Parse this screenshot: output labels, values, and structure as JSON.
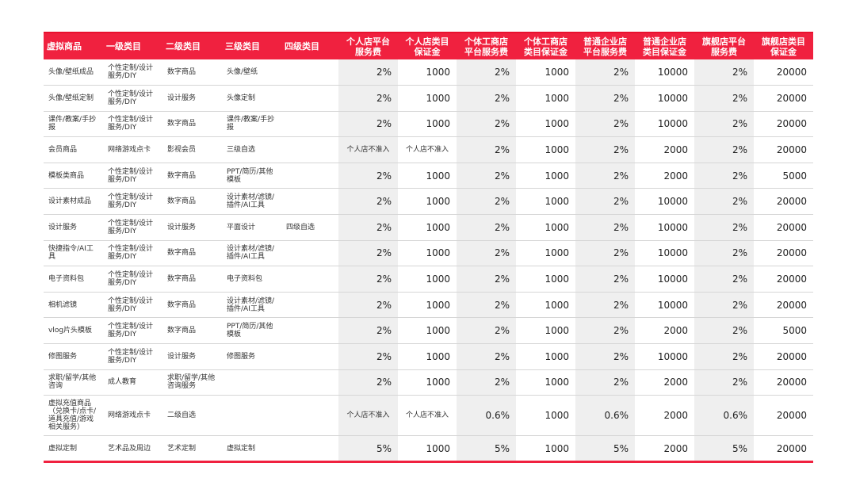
{
  "headers": [
    "虚拟商品",
    "一级类目",
    "二级类目",
    "三级类目",
    "四级类目",
    "个人店平台\n服务费",
    "个人店类目\n保证金",
    "个体工商店\n平台服务费",
    "个体工商店\n类目保证金",
    "普通企业店\n平台服务费",
    "普通企业店\n类目保证金",
    "旗舰店平台\n服务费",
    "旗舰店类目\n保证金"
  ],
  "rows": [
    [
      "头像/壁纸成品",
      "个性定制/设计服务/DIY",
      "数字商品",
      "头像/壁纸",
      "",
      "2%",
      "1000",
      "2%",
      "1000",
      "2%",
      "10000",
      "2%",
      "20000"
    ],
    [
      "头像/壁纸定制",
      "个性定制/设计服务/DIY",
      "设计服务",
      "头像定制",
      "",
      "2%",
      "1000",
      "2%",
      "1000",
      "2%",
      "10000",
      "2%",
      "20000"
    ],
    [
      "课件/教案/手抄报",
      "个性定制/设计服务/DIY",
      "数字商品",
      "课件/教案/手抄报",
      "",
      "2%",
      "1000",
      "2%",
      "1000",
      "2%",
      "10000",
      "2%",
      "20000"
    ],
    [
      "会员商品",
      "网络游戏点卡",
      "影视会员",
      "三级自选",
      "",
      "个人店不准入",
      "个人店不准入",
      "2%",
      "1000",
      "2%",
      "2000",
      "2%",
      "20000"
    ],
    [
      "模板类商品",
      "个性定制/设计服务/DIY",
      "数字商品",
      "PPT/简历/其他模板",
      "",
      "2%",
      "1000",
      "2%",
      "1000",
      "2%",
      "2000",
      "2%",
      "5000"
    ],
    [
      "设计素材成品",
      "个性定制/设计服务/DIY",
      "数字商品",
      "设计素材/滤镜/插件/AI工具",
      "",
      "2%",
      "1000",
      "2%",
      "1000",
      "2%",
      "10000",
      "2%",
      "20000"
    ],
    [
      "设计服务",
      "个性定制/设计服务/DIY",
      "设计服务",
      "平面设计",
      "四级自选",
      "2%",
      "1000",
      "2%",
      "1000",
      "2%",
      "10000",
      "2%",
      "20000"
    ],
    [
      "快捷指令/AI工具",
      "个性定制/设计服务/DIY",
      "数字商品",
      "设计素材/滤镜/插件/AI工具",
      "",
      "2%",
      "1000",
      "2%",
      "1000",
      "2%",
      "10000",
      "2%",
      "20000"
    ],
    [
      "电子资料包",
      "个性定制/设计服务/DIY",
      "数字商品",
      "电子资料包",
      "",
      "2%",
      "1000",
      "2%",
      "1000",
      "2%",
      "10000",
      "2%",
      "20000"
    ],
    [
      "相机滤镜",
      "个性定制/设计服务/DIY",
      "数字商品",
      "设计素材/滤镜/插件/AI工具",
      "",
      "2%",
      "1000",
      "2%",
      "1000",
      "2%",
      "10000",
      "2%",
      "20000"
    ],
    [
      "vlog片头模板",
      "个性定制/设计服务/DIY",
      "数字商品",
      "PPT/简历/其他模板",
      "",
      "2%",
      "1000",
      "2%",
      "1000",
      "2%",
      "2000",
      "2%",
      "5000"
    ],
    [
      "修图服务",
      "个性定制/设计服务/DIY",
      "设计服务",
      "修图服务",
      "",
      "2%",
      "1000",
      "2%",
      "1000",
      "2%",
      "10000",
      "2%",
      "20000"
    ],
    [
      "求职/留学/其他咨询",
      "成人教育",
      "求职/留学/其他咨询服务",
      "",
      "",
      "2%",
      "1000",
      "2%",
      "1000",
      "2%",
      "2000",
      "2%",
      "20000"
    ],
    [
      "虚拟充值商品（兑换卡/点卡/道具充值/游戏相关服务）",
      "网络游戏点卡",
      "二级自选",
      "",
      "",
      "个人店不准入",
      "个人店不准入",
      "0.6%",
      "1000",
      "0.6%",
      "2000",
      "0.6%",
      "20000"
    ],
    [
      "虚拟定制",
      "艺术品及周边",
      "艺术定制",
      "虚拟定制",
      "",
      "5%",
      "1000",
      "5%",
      "1000",
      "5%",
      "2000",
      "5%",
      "20000"
    ]
  ]
}
